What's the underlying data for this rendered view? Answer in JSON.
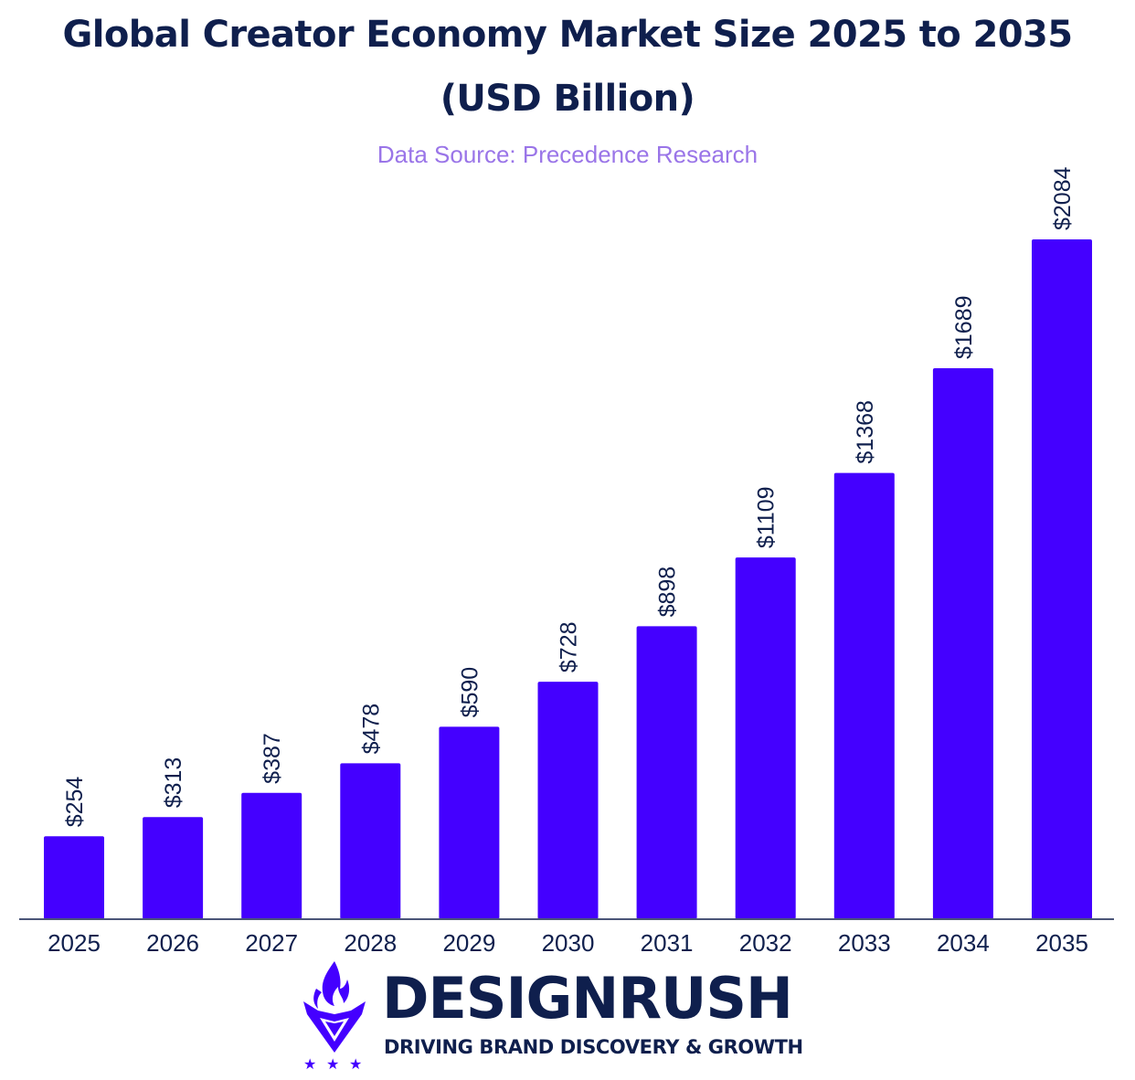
{
  "colors": {
    "bar": "#4400ff",
    "title": "#0f1f4d",
    "source": "#9a75e8",
    "axis": "#4a5578",
    "label": "#0f1f4d"
  },
  "header": {
    "title_line1": "Global Creator Economy Market Size 2025 to 2035",
    "title_line2": "(USD Billion)",
    "source": "Data Source: Precedence Research"
  },
  "chart_data": {
    "type": "bar",
    "title": "Global Creator Economy Market Size 2025 to 2035 (USD Billion)",
    "categories": [
      "2025",
      "2026",
      "2027",
      "2028",
      "2029",
      "2030",
      "2031",
      "2032",
      "2033",
      "2034",
      "2035"
    ],
    "values": [
      254,
      313,
      387,
      478,
      590,
      728,
      898,
      1109,
      1368,
      1689,
      2084
    ],
    "data_labels": [
      "$254",
      "$313",
      "$387",
      "$478",
      "$590",
      "$728",
      "$898",
      "$1109",
      "$1368",
      "$1689",
      "$2084"
    ],
    "xlabel": "",
    "ylabel": "",
    "ylim": [
      0,
      2200
    ],
    "grid": false,
    "legend": "none"
  },
  "logo": {
    "name": "DESIGNRUSH",
    "tagline": "DRIVING BRAND DISCOVERY & GROWTH",
    "icon": "flame-shield-icon"
  }
}
